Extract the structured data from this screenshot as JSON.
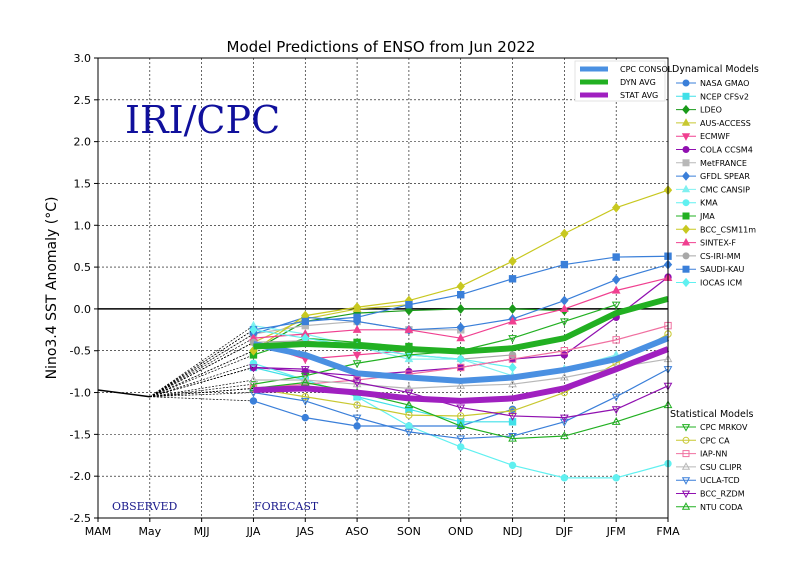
{
  "chart_data": {
    "type": "line",
    "title": "Model Predictions of ENSO from Jun 2022",
    "ylabel": "Nino3.4 SST Anomaly (°C)",
    "xlabel": "",
    "categories": [
      "MAM",
      "May",
      "MJJ",
      "JJA",
      "JAS",
      "ASO",
      "SON",
      "OND",
      "NDJ",
      "DJF",
      "JFM",
      "FMA"
    ],
    "ylim": [
      -2.5,
      3.0
    ],
    "yticks": [
      "3.0",
      "2.5",
      "2.0",
      "1.5",
      "1.0",
      "0.5",
      "0.0",
      "-0.5",
      "-1.0",
      "-1.5",
      "-2.0",
      "-2.5"
    ],
    "grid": true,
    "watermark": "IRI/CPC",
    "observed_label": "OBSERVED",
    "forecast_label": "FORECAST",
    "observed": {
      "x": [
        "MAM",
        "May"
      ],
      "values": [
        -0.97,
        -1.05
      ],
      "color": "#000000"
    },
    "consensus_legend": [
      {
        "name": "CPC CONSOL",
        "color": "#4a90e2"
      },
      {
        "name": "DYN AVG",
        "color": "#22b022"
      },
      {
        "name": "STAT AVG",
        "color": "#a020c0"
      }
    ],
    "consensus": [
      {
        "name": "CPC CONSOL",
        "color": "#4a90e2",
        "width": 6,
        "values": [
          null,
          null,
          null,
          -0.42,
          -0.55,
          -0.77,
          -0.82,
          -0.86,
          -0.82,
          -0.73,
          -0.6,
          -0.35
        ]
      },
      {
        "name": "DYN AVG",
        "color": "#22b022",
        "width": 6,
        "values": [
          null,
          null,
          null,
          -0.45,
          -0.42,
          -0.44,
          -0.48,
          -0.51,
          -0.47,
          -0.35,
          -0.05,
          0.12
        ]
      },
      {
        "name": "STAT AVG",
        "color": "#a020c0",
        "width": 6,
        "values": [
          null,
          null,
          null,
          -0.97,
          -0.95,
          -1.0,
          -1.07,
          -1.1,
          -1.07,
          -0.95,
          -0.72,
          -0.48
        ]
      }
    ],
    "dynamical_title": "Dynamical Models",
    "statistical_title": "Statistical Models",
    "dynamical": [
      {
        "name": "NASA GMAO",
        "color": "#3a7fd9",
        "marker": "circle",
        "values": [
          null,
          null,
          null,
          -1.1,
          -1.3,
          -1.4,
          -1.4,
          -1.4,
          -1.2,
          null,
          null,
          null
        ]
      },
      {
        "name": "NCEP CFSv2",
        "color": "#40e0e8",
        "marker": "square",
        "values": [
          null,
          null,
          null,
          -0.7,
          -0.85,
          -1.05,
          -1.2,
          -1.35,
          -1.35,
          null,
          null,
          null
        ]
      },
      {
        "name": "LDEO",
        "color": "#1a9a1a",
        "marker": "diamond",
        "values": [
          null,
          null,
          null,
          -0.5,
          -0.15,
          -0.05,
          -0.02,
          0.0,
          0.0,
          -0.02,
          null,
          null
        ]
      },
      {
        "name": "AUS-ACCESS",
        "color": "#c8c830",
        "marker": "triangle-up",
        "values": [
          null,
          null,
          null,
          -0.4,
          -0.12,
          0.0,
          0.05,
          null,
          null,
          null,
          null,
          null
        ]
      },
      {
        "name": "ECMWF",
        "color": "#f04090",
        "marker": "triangle-down",
        "values": [
          null,
          null,
          null,
          -0.4,
          -0.6,
          -0.55,
          -0.5,
          null,
          null,
          null,
          null,
          null
        ]
      },
      {
        "name": "COLA CCSM4",
        "color": "#9010b0",
        "marker": "circle",
        "values": [
          null,
          null,
          null,
          -0.7,
          -0.75,
          -0.8,
          -0.75,
          -0.7,
          -0.6,
          -0.55,
          -0.1,
          0.38
        ]
      },
      {
        "name": "MetFRANCE",
        "color": "#b8b8b8",
        "marker": "square",
        "values": [
          null,
          null,
          null,
          -0.3,
          -0.2,
          -0.15,
          -0.25,
          -0.25,
          null,
          null,
          null,
          null
        ]
      },
      {
        "name": "GFDL SPEAR",
        "color": "#3a7fd9",
        "marker": "diamond",
        "values": [
          null,
          null,
          null,
          -0.3,
          -0.1,
          -0.15,
          -0.25,
          -0.22,
          -0.12,
          0.1,
          0.35,
          0.53
        ]
      },
      {
        "name": "CMC CANSIP",
        "color": "#80f0f0",
        "marker": "triangle-up",
        "values": [
          null,
          null,
          null,
          -0.2,
          -0.3,
          -0.45,
          -0.6,
          -0.6,
          -0.8,
          -0.72,
          -0.55,
          null
        ]
      },
      {
        "name": "KMA",
        "color": "#60f0f0",
        "marker": "circle",
        "values": [
          null,
          null,
          null,
          -0.65,
          -0.85,
          -1.05,
          -1.4,
          -1.65,
          -1.87,
          -2.02,
          -2.02,
          -1.85
        ]
      },
      {
        "name": "JMA",
        "color": "#22b022",
        "marker": "square",
        "values": [
          null,
          null,
          null,
          -0.55,
          -0.35,
          -0.4,
          -0.45,
          -0.5,
          null,
          null,
          null,
          null
        ]
      },
      {
        "name": "BCC_CSM11m",
        "color": "#c8c820",
        "marker": "diamond",
        "values": [
          null,
          null,
          null,
          -0.5,
          -0.08,
          0.02,
          0.1,
          0.27,
          0.57,
          0.9,
          1.21,
          1.42
        ]
      },
      {
        "name": "SINTEX-F",
        "color": "#f04090",
        "marker": "triangle-up",
        "values": [
          null,
          null,
          null,
          -0.35,
          -0.3,
          -0.25,
          -0.25,
          -0.35,
          -0.15,
          0.0,
          0.22,
          0.37
        ]
      },
      {
        "name": "CS-IRI-MM",
        "color": "#a8a8a8",
        "marker": "circle",
        "values": [
          null,
          null,
          null,
          -0.4,
          -0.38,
          -0.45,
          -0.55,
          -0.6,
          -0.55,
          null,
          null,
          null
        ]
      },
      {
        "name": "SAUDI-KAU",
        "color": "#3a7fd9",
        "marker": "square",
        "values": [
          null,
          null,
          null,
          -0.25,
          -0.15,
          -0.1,
          0.05,
          0.17,
          0.36,
          0.53,
          0.62,
          0.63
        ]
      },
      {
        "name": "IOCAS ICM",
        "color": "#60f0f0",
        "marker": "diamond",
        "values": [
          null,
          null,
          null,
          -0.25,
          -0.35,
          -0.45,
          -0.55,
          -0.6,
          -0.7,
          null,
          null,
          null
        ]
      }
    ],
    "statistical": [
      {
        "name": "CPC MRKOV",
        "color": "#22b022",
        "marker": "triangle-down",
        "values": [
          null,
          null,
          null,
          -0.9,
          -0.8,
          -0.65,
          -0.55,
          -0.5,
          -0.35,
          -0.15,
          0.05,
          null
        ]
      },
      {
        "name": "CPC CA",
        "color": "#c8c830",
        "marker": "circle",
        "values": [
          null,
          null,
          null,
          -0.95,
          -1.05,
          -1.15,
          -1.27,
          -1.28,
          -1.22,
          -1.0,
          -0.65,
          -0.3
        ]
      },
      {
        "name": "IAP-NN",
        "color": "#f070a0",
        "marker": "square",
        "values": [
          null,
          null,
          null,
          -0.95,
          -0.9,
          -0.85,
          -0.78,
          -0.7,
          -0.6,
          -0.5,
          -0.37,
          -0.2
        ]
      },
      {
        "name": "CSU CLIPR",
        "color": "#b8b8b8",
        "marker": "triangle-up",
        "values": [
          null,
          null,
          null,
          -0.85,
          -0.85,
          -0.9,
          -0.95,
          -0.92,
          -0.9,
          -0.82,
          -0.7,
          -0.6
        ]
      },
      {
        "name": "UCLA-TCD",
        "color": "#3a7fd9",
        "marker": "triangle-down",
        "values": [
          null,
          null,
          null,
          -1.0,
          -1.1,
          -1.3,
          -1.47,
          -1.55,
          -1.52,
          -1.35,
          -1.05,
          -0.72
        ]
      },
      {
        "name": "BCC_RZDM",
        "color": "#9010b0",
        "marker": "triangle-down",
        "values": [
          null,
          null,
          null,
          -0.7,
          -0.72,
          -0.88,
          -1.0,
          -1.18,
          -1.28,
          -1.3,
          -1.2,
          -0.92
        ]
      },
      {
        "name": "NTU CODA",
        "color": "#22b022",
        "marker": "triangle-up",
        "values": [
          null,
          null,
          null,
          -0.95,
          -0.88,
          -1.0,
          -1.15,
          -1.4,
          -1.55,
          -1.52,
          -1.35,
          -1.15
        ]
      }
    ]
  }
}
